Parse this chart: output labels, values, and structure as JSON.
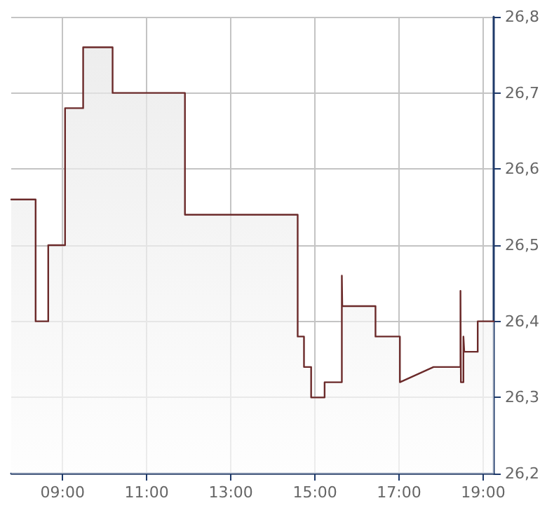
{
  "chart_data": {
    "type": "area",
    "x": [
      7.78,
      8.36,
      8.36,
      8.66,
      8.66,
      9.06,
      9.06,
      9.49,
      9.49,
      10.19,
      10.19,
      11.91,
      11.91,
      14.59,
      14.59,
      14.74,
      14.74,
      14.91,
      14.91,
      15.23,
      15.23,
      15.64,
      15.64,
      15.65,
      16.44,
      16.44,
      17.02,
      17.02,
      17.82,
      18.46,
      18.46,
      18.47,
      18.53,
      18.53,
      18.55,
      18.87,
      18.87,
      19.25
    ],
    "series": [
      {
        "color": "#6b2a2a",
        "values": [
          26.56,
          26.56,
          26.4,
          26.4,
          26.5,
          26.5,
          26.68,
          26.68,
          26.76,
          26.76,
          26.7,
          26.7,
          26.54,
          26.54,
          26.38,
          26.38,
          26.34,
          26.34,
          26.3,
          26.3,
          26.32,
          26.32,
          26.46,
          26.42,
          26.42,
          26.38,
          26.38,
          26.32,
          26.34,
          26.34,
          26.44,
          26.32,
          26.32,
          26.38,
          26.36,
          26.36,
          26.4,
          26.4
        ]
      }
    ],
    "xlim": [
      7.78,
      19.25
    ],
    "xticks": [
      {
        "value": 9,
        "label": "09:00"
      },
      {
        "value": 11,
        "label": "11:00"
      },
      {
        "value": 13,
        "label": "13:00"
      },
      {
        "value": 15,
        "label": "15:00"
      },
      {
        "value": 17,
        "label": "17:00"
      },
      {
        "value": 19,
        "label": "19:00"
      }
    ],
    "ylim": [
      26.2,
      26.8
    ],
    "yticks": [
      {
        "value": 26.2,
        "label": "26,2"
      },
      {
        "value": 26.3,
        "label": "26,3"
      },
      {
        "value": 26.4,
        "label": "26,4"
      },
      {
        "value": 26.5,
        "label": "26,5"
      },
      {
        "value": 26.6,
        "label": "26,6"
      },
      {
        "value": 26.7,
        "label": "26,7"
      },
      {
        "value": 26.8,
        "label": "26,8"
      }
    ],
    "grid": true
  }
}
